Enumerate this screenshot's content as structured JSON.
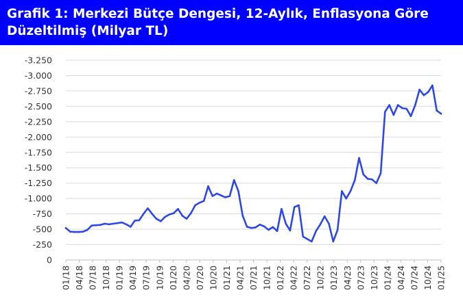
{
  "title": "Grafik 1: Merkezi Bütçe Dengesi, 12-Aylık, Enflasyona Göre Düzeltilmiş (Milyar TL)",
  "colors": {
    "title_bg": "#0000ff",
    "series": "#2d47e6",
    "grid": "#d9d9d9",
    "axis": "#bfbfbf"
  },
  "chart_data": {
    "type": "line",
    "title": "Grafik 1: Merkezi Bütçe Dengesi, 12-Aylık, Enflasyona Göre Düzeltilmiş (Milyar TL)",
    "xlabel": "",
    "ylabel": "",
    "grid": true,
    "ylim": [
      0,
      -3250
    ],
    "y_ticks": [
      0,
      -250,
      -500,
      -750,
      -1000,
      -1250,
      -1500,
      -1750,
      -2000,
      -2250,
      -2500,
      -2750,
      -3000,
      -3250
    ],
    "y_tick_labels": [
      "0",
      "-250",
      "-500",
      "-750",
      "-1.000",
      "-1.250",
      "-1.500",
      "-1.750",
      "-2.000",
      "-2.250",
      "-2.500",
      "-2.750",
      "-3.000",
      "-3.250"
    ],
    "x_start": "01/18",
    "x_end": "01/25",
    "x_tick_labels": [
      "01/18",
      "04/18",
      "07/18",
      "10/18",
      "01/19",
      "04/19",
      "07/19",
      "10/19",
      "01/20",
      "04/20",
      "07/20",
      "10/20",
      "01/21",
      "04/21",
      "07/21",
      "10/21",
      "01/22",
      "04/22",
      "07/22",
      "10/22",
      "01/23",
      "04/23",
      "07/23",
      "10/23",
      "01/24",
      "04/24",
      "07/24",
      "10/24",
      "01/25"
    ],
    "series": [
      {
        "values": [
          -520,
          -460,
          -455,
          -455,
          -460,
          -490,
          -560,
          -565,
          -570,
          -590,
          -580,
          -590,
          -600,
          -610,
          -580,
          -540,
          -640,
          -645,
          -750,
          -840,
          -750,
          -670,
          -630,
          -700,
          -740,
          -760,
          -830,
          -720,
          -670,
          -760,
          -890,
          -930,
          -960,
          -1200,
          -1040,
          -1080,
          -1050,
          -1020,
          -1040,
          -1300,
          -1120,
          -720,
          -540,
          -520,
          -530,
          -575,
          -545,
          -490,
          -535,
          -470,
          -830,
          -590,
          -480,
          -860,
          -890,
          -380,
          -340,
          -300,
          -470,
          -580,
          -710,
          -590,
          -300,
          -490,
          -1120,
          -1000,
          -1120,
          -1300,
          -1660,
          -1390,
          -1320,
          -1310,
          -1250,
          -1410,
          -2410,
          -2520,
          -2360,
          -2520,
          -2470,
          -2460,
          -2340,
          -2520,
          -2770,
          -2680,
          -2730,
          -2840,
          -2430,
          -2380
        ]
      }
    ]
  }
}
